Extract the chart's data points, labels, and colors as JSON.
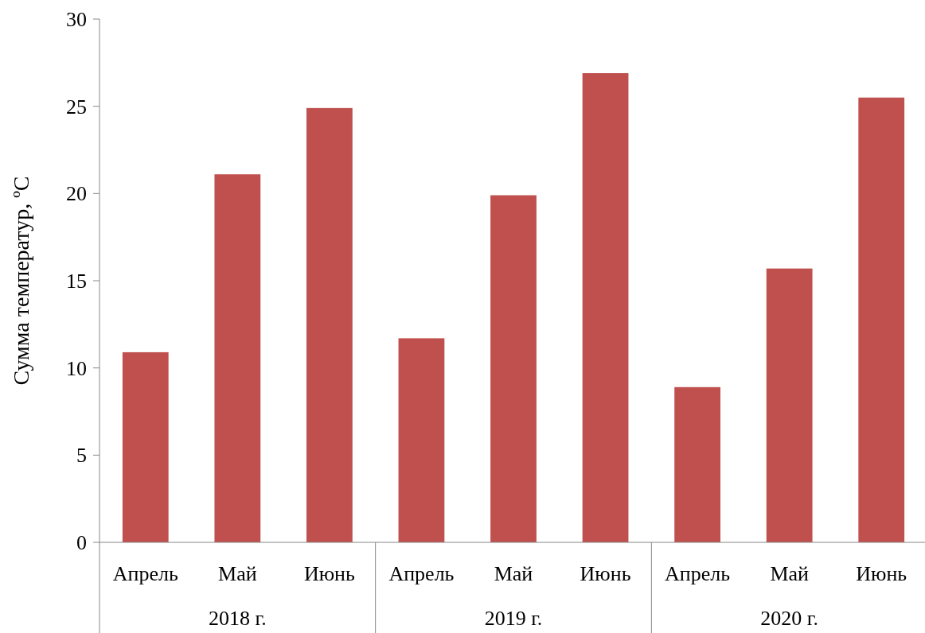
{
  "chart_data": {
    "type": "bar",
    "ylabel": "Сумма температур, ºC",
    "categories": [
      "Апрель",
      "Май",
      "Июнь",
      "Апрель",
      "Май",
      "Июнь",
      "Апрель",
      "Май",
      "Июнь"
    ],
    "values": [
      10.9,
      21.1,
      24.9,
      11.7,
      19.9,
      26.9,
      8.9,
      15.7,
      25.5
    ],
    "color": "#c0504d",
    "ylim": [
      0,
      30
    ],
    "yticks": [
      0,
      5,
      10,
      15,
      20,
      25,
      30
    ],
    "annotations": [
      "2018 г.",
      "2019 г.",
      "2020 г."
    ],
    "grid": false
  }
}
